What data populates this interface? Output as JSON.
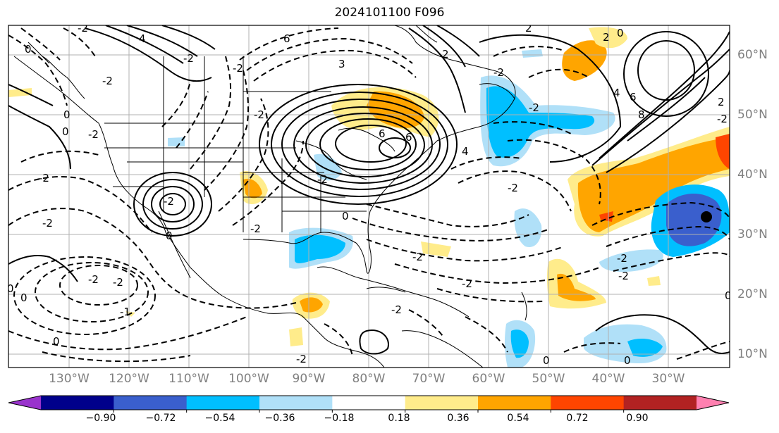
{
  "title": "2024101100 F096",
  "map": {
    "lon_labels": [
      "130°W",
      "120°W",
      "110°W",
      "100°W",
      "90°W",
      "80°W",
      "70°W",
      "60°W",
      "50°W",
      "40°W",
      "30°W"
    ],
    "lat_labels": [
      "60°N",
      "50°N",
      "40°N",
      "30°N",
      "20°N",
      "10°N"
    ],
    "contour_labels": [
      "4",
      "6",
      "3",
      "0",
      "0",
      "0",
      "-2",
      "-2",
      "-2",
      "-2",
      "-2",
      "-2",
      "-2",
      "-1",
      "0",
      "-2",
      "-2",
      "6",
      "0",
      "-2",
      "-2",
      "-2",
      "2",
      "8",
      "6",
      "4",
      "2",
      "-2",
      "-2",
      "0",
      "0",
      "0",
      "-2",
      "2",
      "4",
      "6",
      "0",
      "-2",
      "-2",
      "-2",
      "-2",
      "-2",
      "-2",
      "2",
      "0",
      "-2",
      "-2",
      "0",
      "0"
    ],
    "marker": "black-dot"
  },
  "colorbar": {
    "ticks": [
      "−0.90",
      "−0.72",
      "−0.54",
      "−0.36",
      "−0.18",
      "0.18",
      "0.36",
      "0.54",
      "0.72",
      "0.90"
    ],
    "colors": [
      "#9933cc",
      "#00008b",
      "#3a5fcd",
      "#00bfff",
      "#b0e0f8",
      "#ffffff",
      "#ffec8b",
      "#ffa500",
      "#ff4500",
      "#b22222",
      "#ff80b0"
    ]
  }
}
